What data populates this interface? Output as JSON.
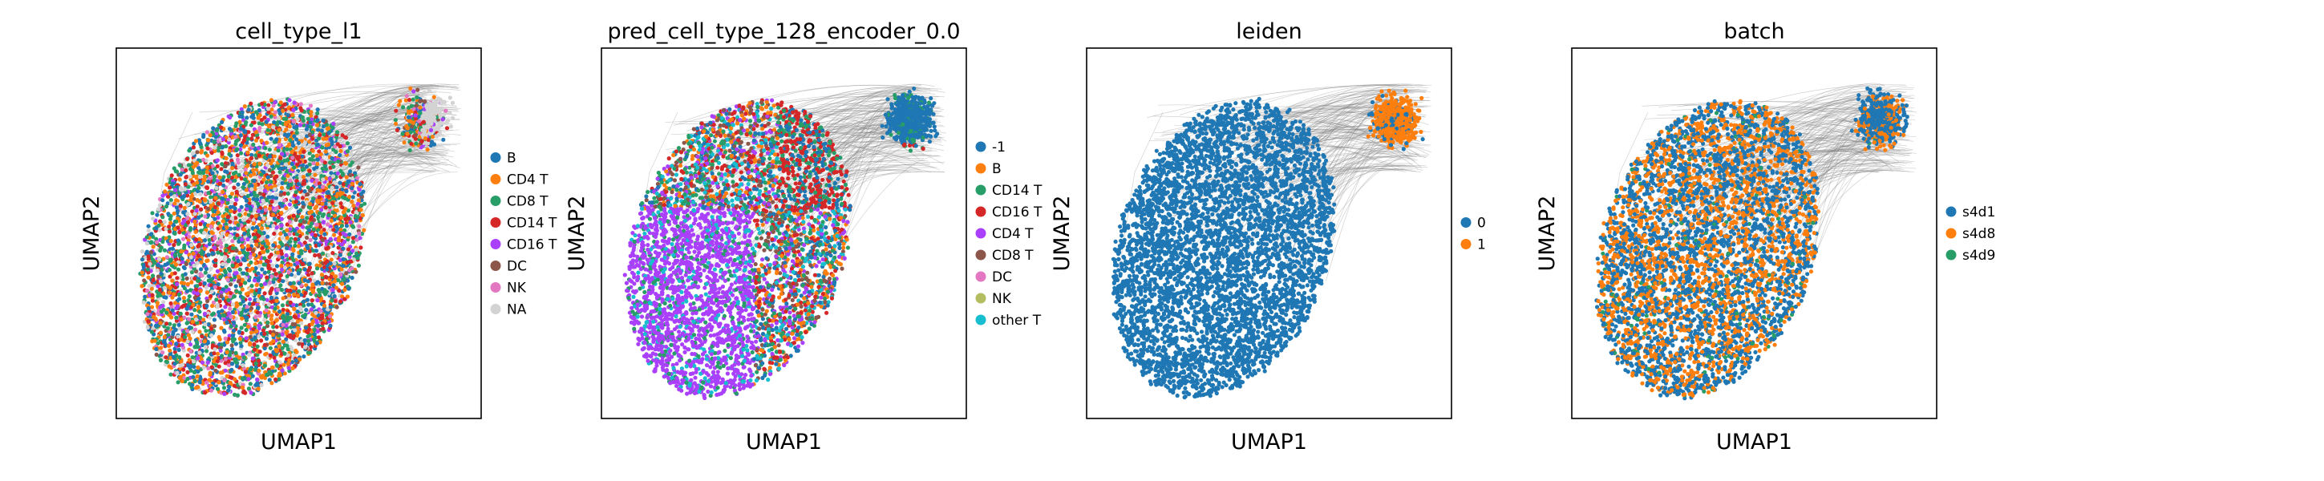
{
  "chart_data": [
    {
      "type": "scatter",
      "title": "cell_type_l1",
      "xlabel": "UMAP1",
      "ylabel": "UMAP2",
      "xticks": false,
      "yticks": false,
      "legend_position": "right",
      "legend": [
        {
          "label": "B",
          "color": "#1f77b4"
        },
        {
          "label": "CD4 T",
          "color": "#ff7f0e"
        },
        {
          "label": "CD8 T",
          "color": "#279e68"
        },
        {
          "label": "CD14 T",
          "color": "#d62728"
        },
        {
          "label": "CD16 T",
          "color": "#aa40fc"
        },
        {
          "label": "DC",
          "color": "#8c564b"
        },
        {
          "label": "NK",
          "color": "#e377c2"
        },
        {
          "label": "NA",
          "color": "#d3d3d3"
        }
      ],
      "point_style": "mixed"
    },
    {
      "type": "scatter",
      "title": "pred_cell_type_128_encoder_0.0",
      "xlabel": "UMAP1",
      "ylabel": "UMAP2",
      "xticks": false,
      "yticks": false,
      "legend_position": "right",
      "legend": [
        {
          "label": "-1",
          "color": "#1f77b4"
        },
        {
          "label": "B",
          "color": "#ff7f0e"
        },
        {
          "label": "CD14 T",
          "color": "#279e68"
        },
        {
          "label": "CD16 T",
          "color": "#d62728"
        },
        {
          "label": "CD4 T",
          "color": "#aa40fc"
        },
        {
          "label": "CD8 T",
          "color": "#8c564b"
        },
        {
          "label": "DC",
          "color": "#e377c2"
        },
        {
          "label": "NK",
          "color": "#b5bd61"
        },
        {
          "label": "other T",
          "color": "#17becf"
        }
      ],
      "point_style": "regional"
    },
    {
      "type": "scatter",
      "title": "leiden",
      "xlabel": "UMAP1",
      "ylabel": "UMAP2",
      "xticks": false,
      "yticks": false,
      "legend_position": "right",
      "legend": [
        {
          "label": "0",
          "color": "#1f77b4"
        },
        {
          "label": "1",
          "color": "#ff7f0e"
        }
      ],
      "point_style": "leiden"
    },
    {
      "type": "scatter",
      "title": "batch",
      "xlabel": "UMAP1",
      "ylabel": "UMAP2",
      "xticks": false,
      "yticks": false,
      "legend_position": "right",
      "legend": [
        {
          "label": "s4d1",
          "color": "#1f77b4"
        },
        {
          "label": "s4d8",
          "color": "#ff7f0e"
        },
        {
          "label": "s4d9",
          "color": "#279e68"
        }
      ],
      "point_style": "batch"
    }
  ]
}
